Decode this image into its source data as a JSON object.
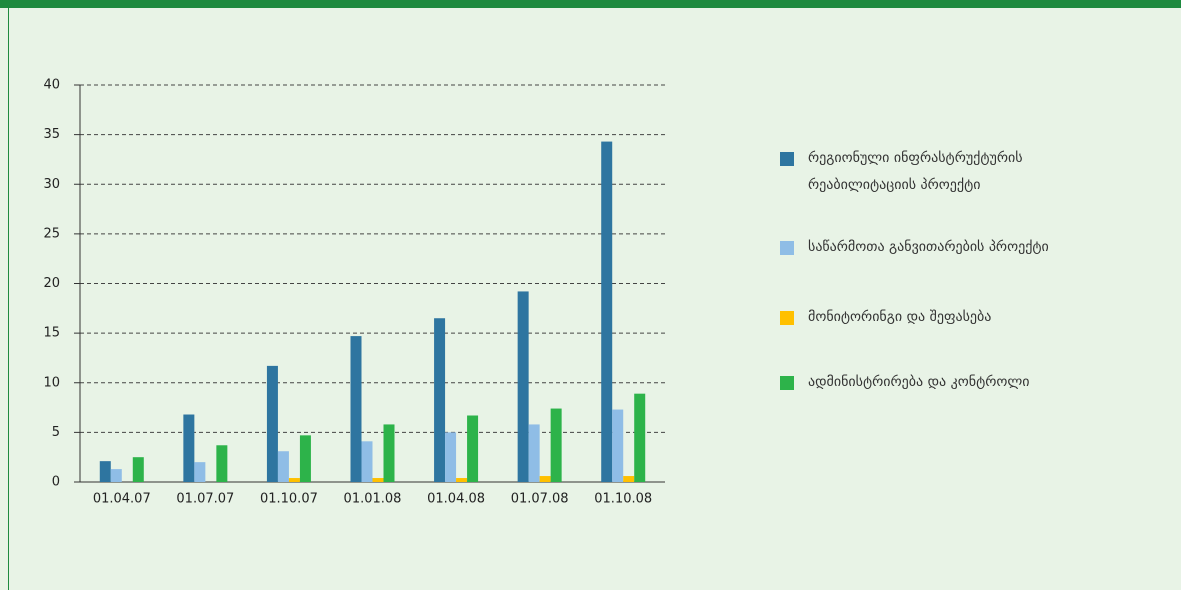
{
  "chart_data": {
    "type": "bar",
    "categories": [
      "01.04.07",
      "01.07.07",
      "01.10.07",
      "01.01.08",
      "01.04.08",
      "01.07.08",
      "01.10.08"
    ],
    "series": [
      {
        "name": "რეგიონული ინფრასტრუქტურის რეაბილიტაციის პროექტი",
        "color": "#2e75a0",
        "values": [
          2.1,
          6.8,
          11.7,
          14.7,
          16.5,
          19.2,
          34.3
        ]
      },
      {
        "name": "საწარმოთა განვითარების პროექტი",
        "color": "#8fbde6",
        "values": [
          1.3,
          2.0,
          3.1,
          4.1,
          5.0,
          5.8,
          7.3
        ]
      },
      {
        "name": "მონიტორინგი და შეფასება",
        "color": "#ffc000",
        "values": [
          0,
          0,
          0.4,
          0.4,
          0.4,
          0.6,
          0.6
        ]
      },
      {
        "name": "ადმინისტრირება და კონტროლი",
        "color": "#2db34a",
        "values": [
          2.5,
          3.7,
          4.7,
          5.8,
          6.7,
          7.4,
          8.9
        ]
      }
    ],
    "ylim": [
      0,
      40
    ],
    "yticks": [
      0,
      5,
      10,
      15,
      20,
      25,
      30,
      35,
      40
    ],
    "grid": true,
    "legend": "right"
  }
}
